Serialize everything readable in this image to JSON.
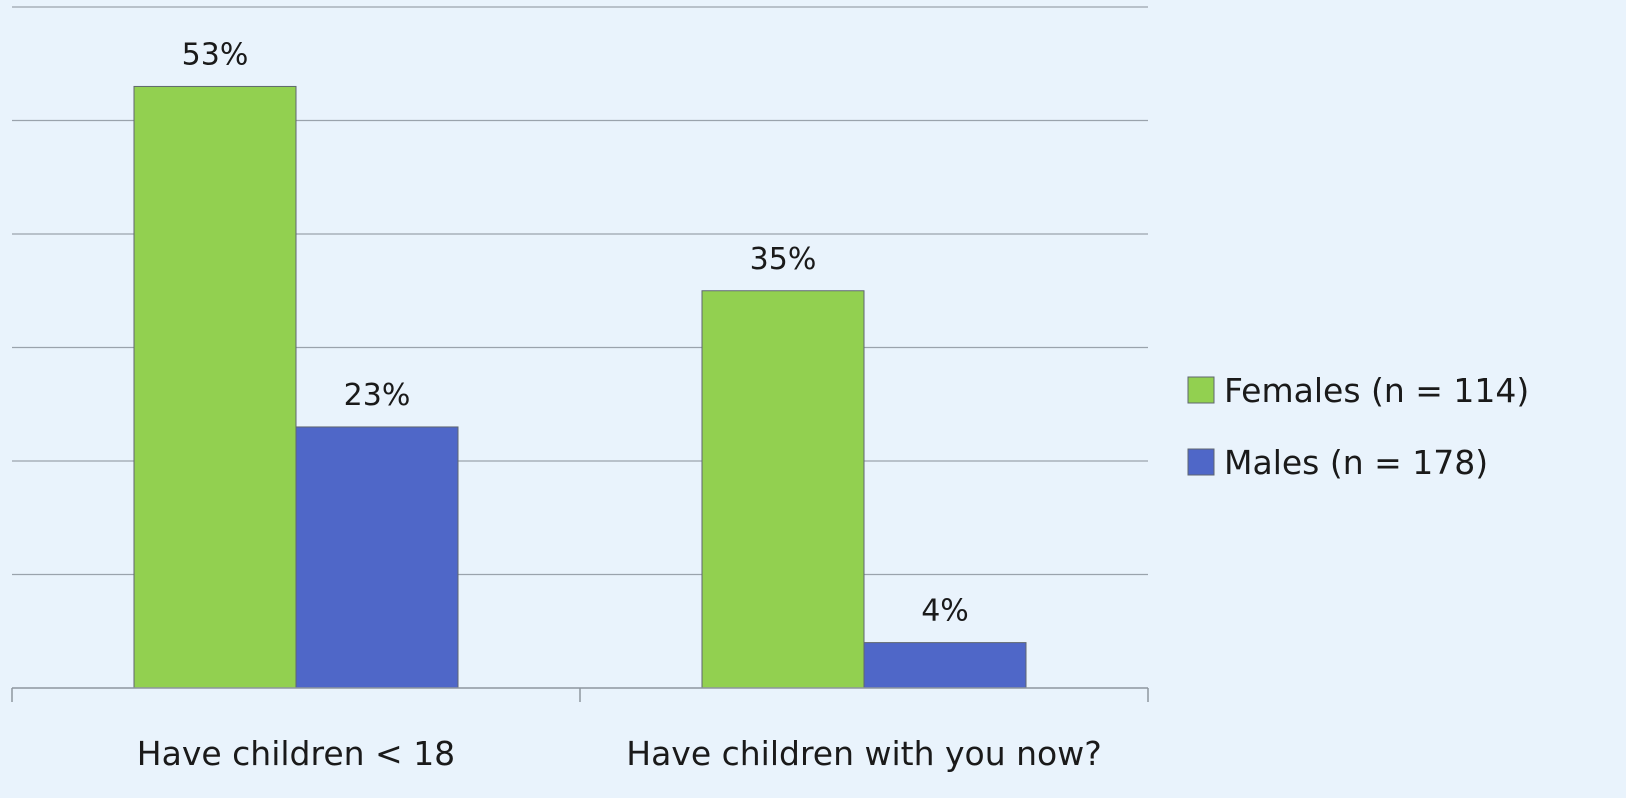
{
  "chart_data": {
    "type": "bar",
    "categories": [
      "Have children < 18",
      "Have children with you now?"
    ],
    "series": [
      {
        "name": "Females (n = 114)",
        "values": [
          53,
          35
        ],
        "labels": [
          "53%",
          "35%"
        ],
        "color": "#92D050"
      },
      {
        "name": "Males (n = 178)",
        "values": [
          23,
          4
        ],
        "labels": [
          "23%",
          "4%"
        ],
        "color": "#4F67C8"
      }
    ],
    "ylim": [
      0,
      60
    ],
    "grid": true,
    "legend_position": "right"
  }
}
